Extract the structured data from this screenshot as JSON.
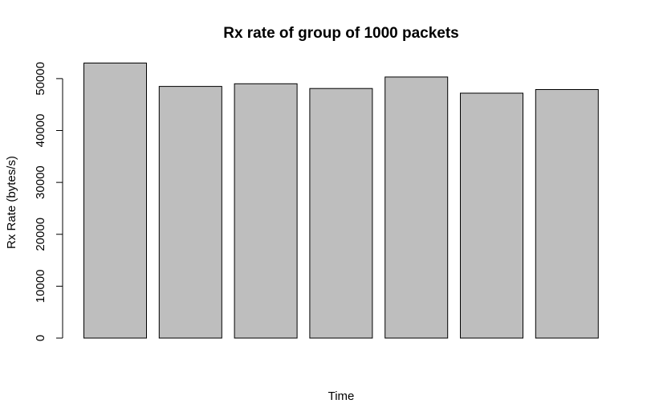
{
  "chart_data": {
    "type": "bar",
    "title": "Rx rate of group of 1000 packets",
    "xlabel": "Time",
    "ylabel": "Rx Rate (bytes/s)",
    "ylim": [
      0,
      53000
    ],
    "yticks": [
      0,
      10000,
      20000,
      30000,
      40000,
      50000
    ],
    "values": [
      53000,
      48500,
      49000,
      48100,
      50300,
      47200,
      47900
    ],
    "bar_color": "#bebebe",
    "border_color": "#000000",
    "grid": false,
    "legend": "none"
  }
}
